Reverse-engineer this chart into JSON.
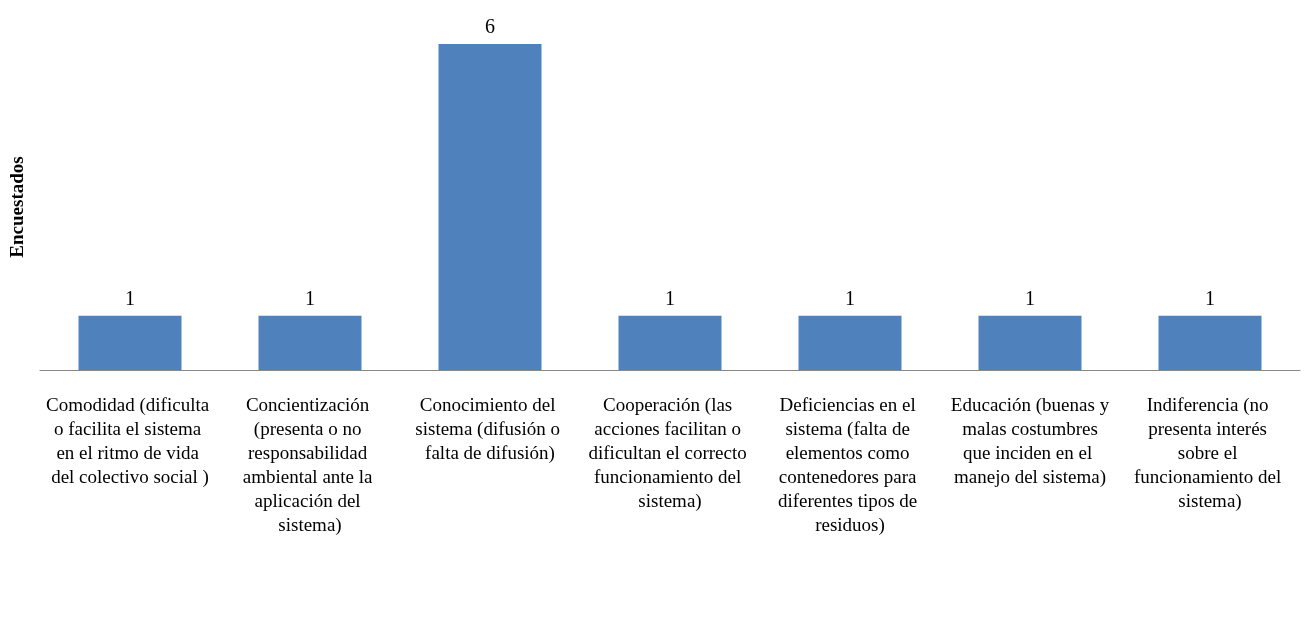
{
  "chart_data": {
    "type": "bar",
    "ylabel": "Encuestados",
    "categories": [
      "Comodidad (dificulta o facilita el sistema en el ritmo de vida del colectivo social )",
      "Concientización (presenta o no responsabilidad ambiental ante la aplicación del sistema)",
      "Conocimiento del sistema (difusión o falta de difusión)",
      "Cooperación (las acciones facilitan o dificultan el correcto funcionamiento del sistema)",
      "Deficiencias en el sistema (falta de elementos como contenedores para diferentes tipos de residuos)",
      "Educación (buenas y malas costumbres que inciden en el manejo del sistema)",
      "Indiferencia (no presenta interés sobre el funcionamiento del sistema)"
    ],
    "values": [
      1,
      1,
      6,
      1,
      1,
      1,
      1
    ],
    "color": "#4f81bd",
    "data_labels": true,
    "tick_labels": "x",
    "grid": false
  }
}
